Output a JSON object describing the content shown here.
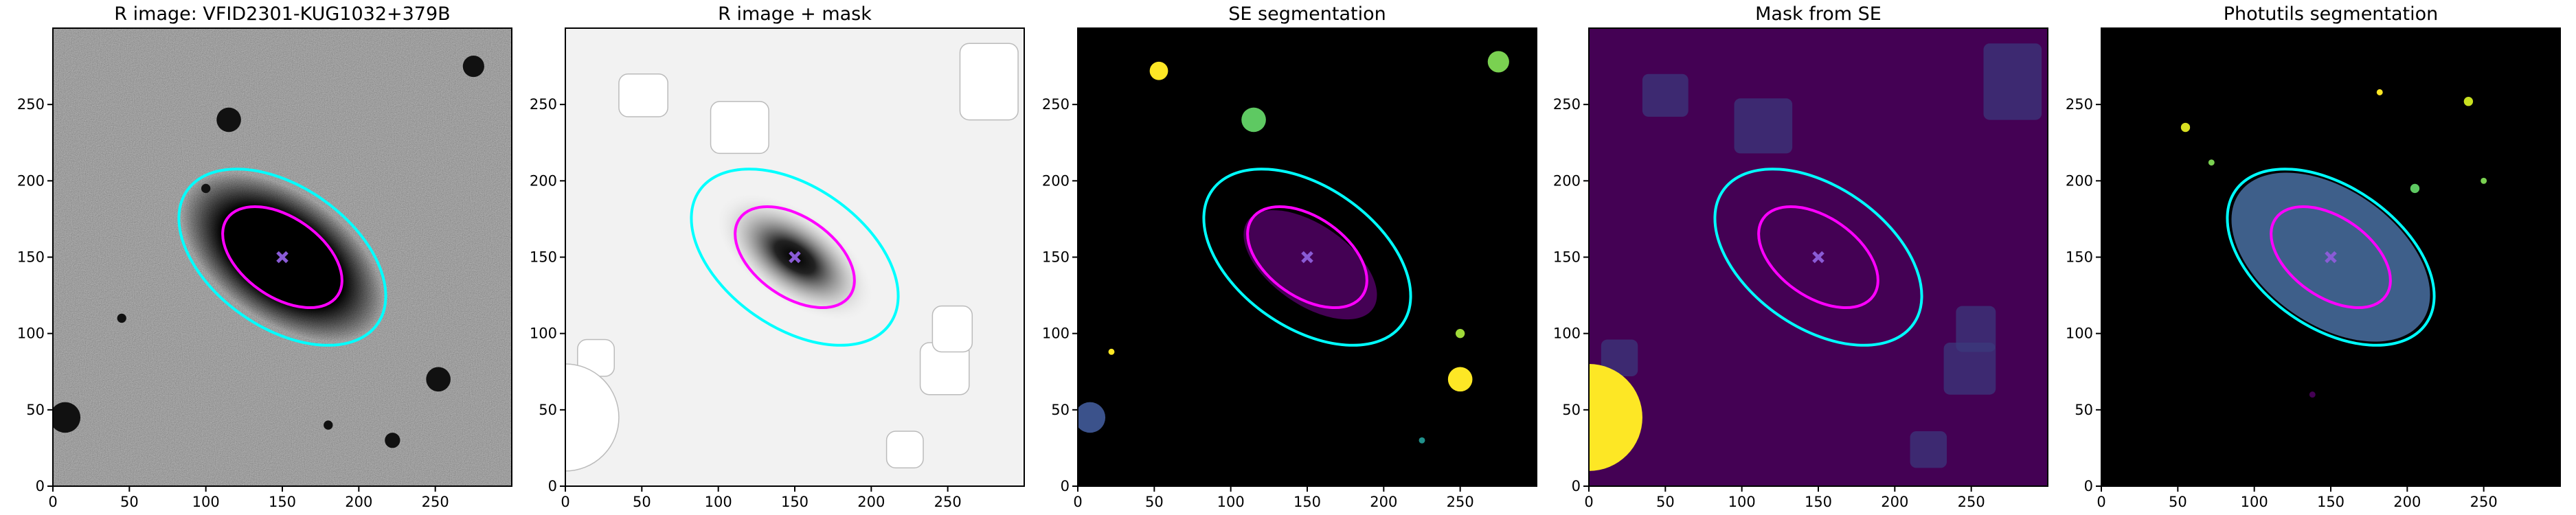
{
  "chart_data": [
    {
      "type": "image",
      "title": "R image: VFID2301-KUG1032+379B",
      "background": "#7a7a7a",
      "xlim": [
        0,
        300
      ],
      "ylim": [
        0,
        300
      ],
      "xticks": [
        0,
        50,
        100,
        150,
        200,
        250
      ],
      "yticks": [
        0,
        50,
        100,
        150,
        200,
        250
      ],
      "ellipses": [
        {
          "x": 150,
          "y": 150,
          "a": 76,
          "b": 46,
          "angle": -35,
          "color": "#00ffff"
        },
        {
          "x": 150,
          "y": 150,
          "a": 44,
          "b": 26,
          "angle": -35,
          "color": "#ff00ff"
        }
      ]
    },
    {
      "type": "image",
      "title": "R image + mask",
      "background": "#f2f2f2",
      "xlim": [
        0,
        300
      ],
      "ylim": [
        0,
        300
      ],
      "xticks": [
        0,
        50,
        100,
        150,
        200,
        250
      ],
      "yticks": [
        0,
        50,
        100,
        150,
        200,
        250
      ],
      "ellipses": [
        {
          "x": 150,
          "y": 150,
          "a": 76,
          "b": 46,
          "angle": -35,
          "color": "#00ffff"
        },
        {
          "x": 150,
          "y": 150,
          "a": 44,
          "b": 26,
          "angle": -35,
          "color": "#ff00ff"
        }
      ]
    },
    {
      "type": "image",
      "title": "SE segmentation",
      "background": "#000000",
      "xlim": [
        0,
        300
      ],
      "ylim": [
        0,
        300
      ],
      "xticks": [
        0,
        50,
        100,
        150,
        200,
        250
      ],
      "yticks": [
        0,
        50,
        100,
        150,
        200,
        250
      ],
      "ellipses": [
        {
          "x": 150,
          "y": 150,
          "a": 76,
          "b": 46,
          "angle": -35,
          "color": "#00ffff"
        },
        {
          "x": 150,
          "y": 150,
          "a": 44,
          "b": 26,
          "angle": -35,
          "color": "#ff00ff"
        }
      ]
    },
    {
      "type": "image",
      "title": "Mask from SE",
      "background": "#440154",
      "xlim": [
        0,
        300
      ],
      "ylim": [
        0,
        300
      ],
      "xticks": [
        0,
        50,
        100,
        150,
        200,
        250
      ],
      "yticks": [
        0,
        50,
        100,
        150,
        200,
        250
      ],
      "ellipses": [
        {
          "x": 150,
          "y": 150,
          "a": 76,
          "b": 46,
          "angle": -35,
          "color": "#00ffff"
        },
        {
          "x": 150,
          "y": 150,
          "a": 44,
          "b": 26,
          "angle": -35,
          "color": "#ff00ff"
        }
      ]
    },
    {
      "type": "image",
      "title": "Photutils segmentation",
      "background": "#000000",
      "xlim": [
        0,
        300
      ],
      "ylim": [
        0,
        300
      ],
      "xticks": [
        0,
        50,
        100,
        150,
        200,
        250
      ],
      "yticks": [
        0,
        50,
        100,
        150,
        200,
        250
      ],
      "ellipses": [
        {
          "x": 150,
          "y": 150,
          "a": 76,
          "b": 46,
          "angle": -35,
          "color": "#00ffff"
        },
        {
          "x": 150,
          "y": 150,
          "a": 44,
          "b": 26,
          "angle": -35,
          "color": "#ff00ff"
        }
      ]
    }
  ]
}
